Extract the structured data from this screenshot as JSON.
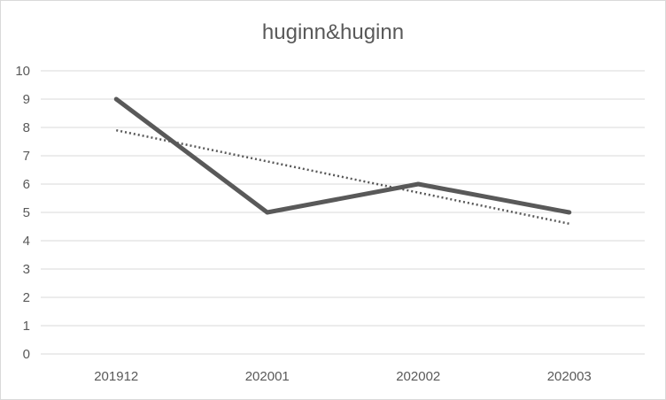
{
  "chart_data": {
    "type": "line",
    "title": "huginn&huginn",
    "xlabel": "",
    "ylabel": "",
    "categories": [
      "201912",
      "202001",
      "202002",
      "202003"
    ],
    "series": [
      {
        "values": [
          9,
          5,
          6,
          5
        ],
        "color": "#595959",
        "style": "solid"
      }
    ],
    "trendline": {
      "type": "linear",
      "style": "dotted",
      "color": "#595959",
      "values": [
        7.9,
        6.8,
        5.7,
        4.6
      ]
    },
    "ylim": [
      0,
      10
    ],
    "yticks": [
      "0",
      "1",
      "2",
      "3",
      "4",
      "5",
      "6",
      "7",
      "8",
      "9",
      "10"
    ],
    "grid": true,
    "legend": "none"
  }
}
